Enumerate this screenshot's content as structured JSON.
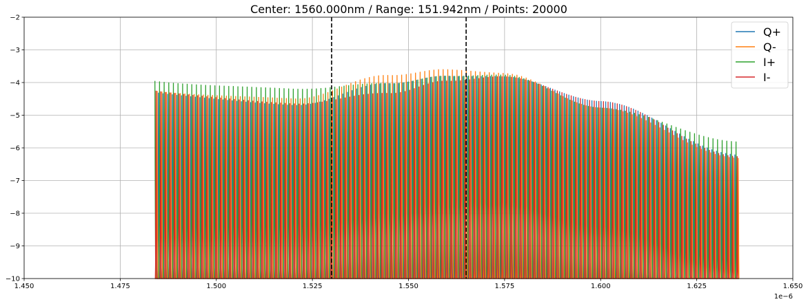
{
  "chart_data": {
    "type": "line",
    "title": "Center: 1560.000nm / Range: 151.942nm / Points: 20000",
    "xlabel": "",
    "ylabel": "",
    "xlim": [
      1.45,
      1.65
    ],
    "ylim": [
      -10,
      -2
    ],
    "x_offset_label": "1e−6",
    "grid": true,
    "legend_position": "top-right",
    "x_ticks": [
      "1.450",
      "1.475",
      "1.500",
      "1.525",
      "1.550",
      "1.575",
      "1.600",
      "1.625",
      "1.650"
    ],
    "x_tick_values": [
      1.45,
      1.475,
      1.5,
      1.525,
      1.55,
      1.575,
      1.6,
      1.625,
      1.65
    ],
    "y_ticks": [
      "−2",
      "−3",
      "−4",
      "−5",
      "−6",
      "−7",
      "−8",
      "−9",
      "−10"
    ],
    "y_tick_values": [
      -2,
      -3,
      -4,
      -5,
      -6,
      -7,
      -8,
      -9,
      -10
    ],
    "data_range": [
      1.48403,
      1.63597
    ],
    "fringe_period": 0.0012,
    "vlines": [
      1.53,
      1.565
    ],
    "series": [
      {
        "name": "Q+",
        "color": "#1f77b4",
        "envelope_x": [
          1.484,
          1.52,
          1.545,
          1.56,
          1.575,
          1.6,
          1.636
        ],
        "envelope_top": [
          -4.3,
          -4.4,
          -3.6,
          -3.3,
          -3.25,
          -3.9,
          -5.4
        ],
        "phase": 0.25
      },
      {
        "name": "Q-",
        "color": "#ff7f0e",
        "envelope_x": [
          1.484,
          1.52,
          1.545,
          1.56,
          1.575,
          1.6,
          1.636
        ],
        "envelope_top": [
          -4.25,
          -4.2,
          -3.35,
          -3.1,
          -3.15,
          -4.1,
          -5.5
        ],
        "phase": 0.5
      },
      {
        "name": "I+",
        "color": "#2ca02c",
        "envelope_x": [
          1.484,
          1.52,
          1.545,
          1.56,
          1.575,
          1.6,
          1.636
        ],
        "envelope_top": [
          -3.95,
          -3.9,
          -3.6,
          -3.3,
          -3.2,
          -4.1,
          -5.0
        ],
        "phase": 0.0
      },
      {
        "name": "I-",
        "color": "#d62728",
        "envelope_x": [
          1.484,
          1.52,
          1.545,
          1.56,
          1.575,
          1.6,
          1.636
        ],
        "envelope_top": [
          -4.25,
          -4.35,
          -3.9,
          -3.45,
          -3.25,
          -3.9,
          -5.45
        ],
        "phase": 0.75
      }
    ]
  }
}
